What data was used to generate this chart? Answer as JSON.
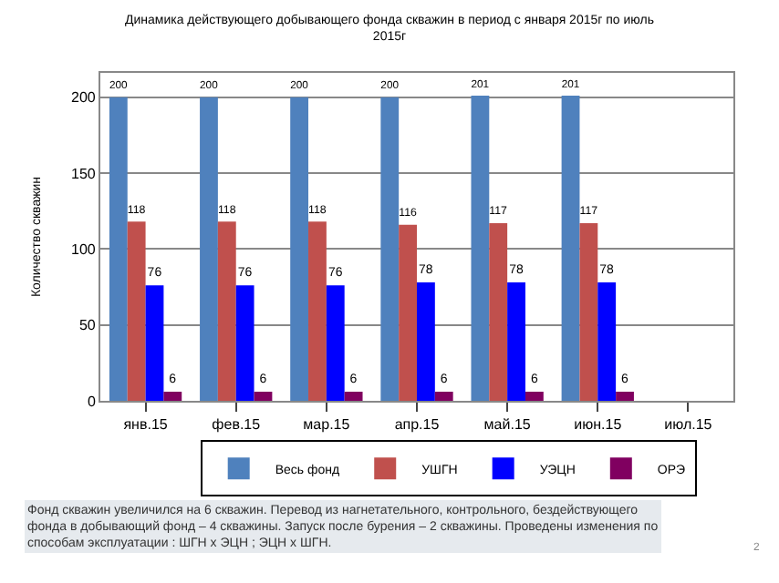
{
  "chart_data": {
    "type": "bar",
    "title": "Динамика действующего добывающего фонда скважин в период с января 2015г по июль 2015г",
    "ylabel": "Количество скважин",
    "categories": [
      "янв.15",
      "фев.15",
      "мар.15",
      "апр.15",
      "май.15",
      "июн.15",
      "июл.15"
    ],
    "series": [
      {
        "name": "Весь фонд",
        "color": "#4f81bd",
        "values": [
          200,
          200,
          200,
          200,
          201,
          201,
          null
        ]
      },
      {
        "name": "УШГН",
        "color": "#c0504d",
        "values": [
          118,
          118,
          118,
          116,
          117,
          117,
          null
        ]
      },
      {
        "name": "УЭЦН",
        "color": "#0000ff",
        "values": [
          76,
          76,
          76,
          78,
          78,
          78,
          null
        ]
      },
      {
        "name": "ОРЭ",
        "color": "#800060",
        "values": [
          6,
          6,
          6,
          6,
          6,
          6,
          null
        ]
      }
    ],
    "ylim": [
      0,
      216
    ],
    "yticks": [
      0,
      50,
      100,
      150,
      200
    ],
    "grid": "y",
    "legend": "bottom",
    "data_labels": true,
    "annotations": [
      "Фонд скважин увеличился на 6 скважин. Перевод из нагнетательного, контрольного, бездействующего фонда в добывающий фонд – 4 скважины. Запуск после бурения – 2 скважины. Проведены изменения по способам эксплуатации : ШГН х ЭЦН ; ЭЦН х ШГН.",
      "2"
    ]
  }
}
